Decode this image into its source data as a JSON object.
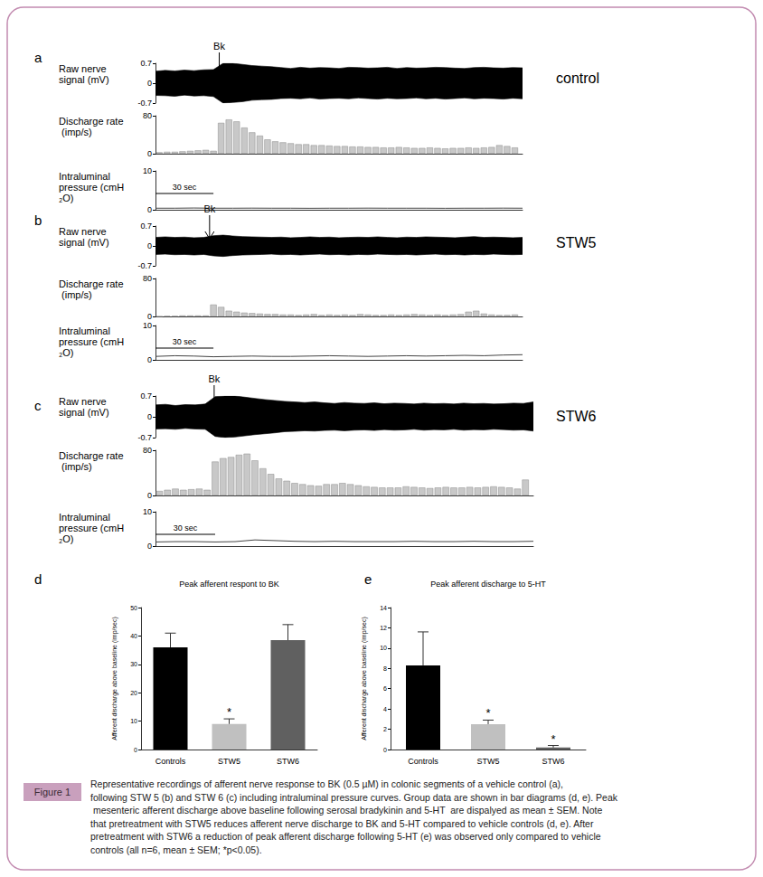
{
  "figure": {
    "label": "Figure 1",
    "caption": "Representative recordings of afferent nerve response to BK (0.5 µM) in colonic segments of a vehicle control (a), following STW 5 (b) and STW 6 (c) including intraluminal pressure curves. Group data are shown in bar diagrams (d, e). Peak mesenteric afferent discharge above baseline following serosal bradykinin and 5-HT  are dispalyed as mean ± SEM. Note that pretreatment with STW5 reduces afferent nerve discharge to BK and 5-HT compared to vehicle controls (d, e). After pretreatment with STW6 a reduction of peak afferent discharge following 5-HT (e) was observed only compared to vehicle controls (all n=6, mean ± SEM; *p<0.05)."
  },
  "chart_data": [
    {
      "panel": "a",
      "type": "recording",
      "title": "control",
      "stimulus": {
        "label": "Bk",
        "x": 33
      },
      "scale_bar": {
        "label": "30 sec",
        "value": 30
      },
      "xlim": [
        0,
        190
      ],
      "tick_labels": "y",
      "tracks": [
        {
          "type": "band",
          "ylabel": "Raw nerve signal (mV)",
          "ylim": [
            -0.7,
            0.7
          ],
          "yticks": [
            -0.7,
            0,
            0.7
          ],
          "color": "#000000",
          "x": [
            0,
            5,
            10,
            15,
            20,
            25,
            30,
            35,
            40,
            45,
            50,
            55,
            60,
            65,
            70,
            75,
            80,
            85,
            90,
            95,
            100,
            105,
            110,
            115,
            120,
            125,
            130,
            135,
            140,
            145,
            150,
            155,
            160,
            165,
            170,
            175,
            180,
            185,
            190
          ],
          "upper": [
            0.42,
            0.45,
            0.43,
            0.46,
            0.44,
            0.47,
            0.48,
            0.7,
            0.7,
            0.66,
            0.62,
            0.6,
            0.58,
            0.55,
            0.52,
            0.56,
            0.53,
            0.55,
            0.54,
            0.52,
            0.56,
            0.55,
            0.53,
            0.54,
            0.56,
            0.52,
            0.55,
            0.53,
            0.54,
            0.56,
            0.55,
            0.53,
            0.52,
            0.55,
            0.56,
            0.54,
            0.53,
            0.55,
            0.54
          ],
          "lower": [
            -0.43,
            -0.44,
            -0.46,
            -0.42,
            -0.45,
            -0.44,
            -0.47,
            -0.7,
            -0.68,
            -0.65,
            -0.6,
            -0.58,
            -0.57,
            -0.54,
            -0.53,
            -0.55,
            -0.52,
            -0.56,
            -0.54,
            -0.53,
            -0.55,
            -0.52,
            -0.54,
            -0.56,
            -0.53,
            -0.55,
            -0.54,
            -0.52,
            -0.55,
            -0.53,
            -0.56,
            -0.54,
            -0.52,
            -0.55,
            -0.53,
            -0.54,
            -0.56,
            -0.53,
            -0.55
          ]
        },
        {
          "type": "bar",
          "ylabel": "Discharge rate (imp/s)",
          "ylim": [
            0,
            80
          ],
          "yticks": [
            0,
            80
          ],
          "color": "#c8c8c8",
          "x": [
            2,
            6,
            10,
            14,
            18,
            22,
            26,
            30,
            34,
            38,
            42,
            46,
            50,
            54,
            58,
            62,
            66,
            70,
            74,
            78,
            82,
            86,
            90,
            94,
            98,
            102,
            106,
            110,
            114,
            118,
            122,
            126,
            130,
            134,
            138,
            142,
            146,
            150,
            154,
            158,
            162,
            166,
            170,
            174,
            178,
            182,
            186
          ],
          "values": [
            3,
            4,
            4,
            5,
            6,
            7,
            8,
            6,
            65,
            72,
            68,
            55,
            45,
            38,
            30,
            26,
            24,
            22,
            20,
            20,
            18,
            18,
            17,
            16,
            16,
            15,
            15,
            14,
            14,
            13,
            13,
            14,
            13,
            12,
            12,
            13,
            12,
            11,
            12,
            12,
            13,
            12,
            13,
            14,
            18,
            16,
            13
          ]
        },
        {
          "type": "line",
          "ylabel": "Intraluminal pressure (cmH₂O)",
          "ylim": [
            0,
            10
          ],
          "yticks": [
            0,
            10
          ],
          "color": "#444444",
          "x": [
            0,
            10,
            20,
            30,
            40,
            50,
            60,
            70,
            80,
            90,
            100,
            110,
            120,
            130,
            140,
            150,
            160,
            170,
            180,
            190
          ],
          "values": [
            0.4,
            0.4,
            0.45,
            0.4,
            0.4,
            0.42,
            0.4,
            0.4,
            0.38,
            0.4,
            0.4,
            0.42,
            0.4,
            0.4,
            0.4,
            0.38,
            0.4,
            0.4,
            0.42,
            0.4
          ]
        }
      ]
    },
    {
      "panel": "b",
      "type": "recording",
      "title": "STW5",
      "stimulus": {
        "label": "Bk",
        "x": 28
      },
      "scale_bar": {
        "label": "30 sec",
        "value": 30
      },
      "xlim": [
        0,
        190
      ],
      "tick_labels": "y",
      "tracks": [
        {
          "type": "band",
          "ylabel": "Raw nerve signal (mV)",
          "ylim": [
            -0.7,
            0.7
          ],
          "yticks": [
            -0.7,
            0,
            0.7
          ],
          "color": "#000000",
          "x": [
            0,
            5,
            10,
            15,
            20,
            25,
            30,
            35,
            40,
            45,
            50,
            55,
            60,
            65,
            70,
            75,
            80,
            85,
            90,
            95,
            100,
            105,
            110,
            115,
            120,
            125,
            130,
            135,
            140,
            145,
            150,
            155,
            160,
            165,
            170,
            175,
            180,
            185,
            190
          ],
          "upper": [
            0.3,
            0.32,
            0.3,
            0.31,
            0.29,
            0.3,
            0.36,
            0.38,
            0.35,
            0.33,
            0.32,
            0.31,
            0.3,
            0.31,
            0.29,
            0.3,
            0.32,
            0.3,
            0.31,
            0.29,
            0.3,
            0.31,
            0.3,
            0.32,
            0.3,
            0.29,
            0.31,
            0.3,
            0.32,
            0.31,
            0.3,
            0.29,
            0.31,
            0.33,
            0.3,
            0.31,
            0.3,
            0.29,
            0.3
          ],
          "lower": [
            -0.3,
            -0.29,
            -0.31,
            -0.3,
            -0.32,
            -0.3,
            -0.35,
            -0.37,
            -0.34,
            -0.32,
            -0.31,
            -0.3,
            -0.29,
            -0.31,
            -0.3,
            -0.32,
            -0.3,
            -0.29,
            -0.31,
            -0.3,
            -0.32,
            -0.3,
            -0.31,
            -0.29,
            -0.3,
            -0.31,
            -0.3,
            -0.32,
            -0.3,
            -0.29,
            -0.31,
            -0.3,
            -0.32,
            -0.3,
            -0.31,
            -0.29,
            -0.3,
            -0.31,
            -0.3
          ]
        },
        {
          "type": "bar",
          "ylabel": "Discharge rate (imp/s)",
          "ylim": [
            0,
            80
          ],
          "yticks": [
            0,
            80
          ],
          "color": "#c8c8c8",
          "x": [
            2,
            6,
            10,
            14,
            18,
            22,
            26,
            30,
            34,
            38,
            42,
            46,
            50,
            54,
            58,
            62,
            66,
            70,
            74,
            78,
            82,
            86,
            90,
            94,
            98,
            102,
            106,
            110,
            114,
            118,
            122,
            126,
            130,
            134,
            138,
            142,
            146,
            150,
            154,
            158,
            162,
            166,
            170,
            174,
            178,
            182,
            186
          ],
          "values": [
            0,
            1,
            1,
            2,
            2,
            2,
            2,
            25,
            20,
            12,
            10,
            8,
            7,
            6,
            5,
            5,
            4,
            4,
            3,
            4,
            5,
            3,
            4,
            3,
            4,
            3,
            5,
            4,
            3,
            3,
            4,
            3,
            4,
            5,
            4,
            3,
            4,
            3,
            4,
            5,
            10,
            12,
            6,
            4,
            3,
            3,
            4
          ]
        },
        {
          "type": "line",
          "ylabel": "Intraluminal pressure (cmH₂O)",
          "ylim": [
            0,
            10
          ],
          "yticks": [
            0,
            10
          ],
          "color": "#444444",
          "x": [
            0,
            10,
            20,
            30,
            40,
            50,
            60,
            70,
            80,
            90,
            100,
            110,
            120,
            130,
            140,
            150,
            160,
            170,
            180,
            190
          ],
          "values": [
            1.0,
            1.2,
            1.1,
            0.9,
            1.0,
            1.1,
            1.0,
            1.0,
            1.1,
            1.2,
            1.1,
            1.0,
            1.1,
            1.2,
            1.1,
            1.2,
            1.3,
            1.2,
            1.4,
            1.5
          ]
        }
      ]
    },
    {
      "panel": "c",
      "type": "recording",
      "title": "STW6",
      "stimulus": {
        "label": "Bk",
        "x": 29.5
      },
      "scale_bar": {
        "label": "30 sec",
        "value": 30
      },
      "xlim": [
        0,
        190
      ],
      "tick_labels": "y",
      "tracks": [
        {
          "type": "band",
          "ylabel": "Raw nerve signal (mV)",
          "ylim": [
            -0.7,
            0.7
          ],
          "yticks": [
            -0.7,
            0,
            0.7
          ],
          "color": "#000000",
          "x": [
            0,
            5,
            10,
            15,
            20,
            25,
            30,
            35,
            40,
            45,
            50,
            55,
            60,
            65,
            70,
            75,
            80,
            85,
            90,
            95,
            100,
            105,
            110,
            115,
            120,
            125,
            130,
            135,
            140,
            145,
            150,
            155,
            160,
            165,
            170,
            175,
            180,
            185,
            190
          ],
          "upper": [
            0.4,
            0.42,
            0.38,
            0.41,
            0.4,
            0.43,
            0.68,
            0.7,
            0.7,
            0.66,
            0.62,
            0.58,
            0.55,
            0.52,
            0.5,
            0.48,
            0.5,
            0.47,
            0.45,
            0.48,
            0.46,
            0.45,
            0.47,
            0.44,
            0.46,
            0.45,
            0.43,
            0.46,
            0.44,
            0.45,
            0.43,
            0.46,
            0.44,
            0.45,
            0.43,
            0.44,
            0.46,
            0.45,
            0.5
          ],
          "lower": [
            -0.41,
            -0.4,
            -0.42,
            -0.39,
            -0.41,
            -0.42,
            -0.66,
            -0.7,
            -0.68,
            -0.64,
            -0.6,
            -0.57,
            -0.54,
            -0.5,
            -0.49,
            -0.47,
            -0.48,
            -0.46,
            -0.45,
            -0.47,
            -0.45,
            -0.44,
            -0.46,
            -0.43,
            -0.45,
            -0.44,
            -0.42,
            -0.45,
            -0.43,
            -0.44,
            -0.42,
            -0.45,
            -0.43,
            -0.44,
            -0.42,
            -0.43,
            -0.45,
            -0.44,
            -0.48
          ]
        },
        {
          "type": "bar",
          "ylabel": "Discharge rate (imp/s)",
          "ylim": [
            0,
            80
          ],
          "yticks": [
            0,
            80
          ],
          "color": "#c8c8c8",
          "x": [
            2,
            6,
            10,
            14,
            18,
            22,
            26,
            30,
            34,
            38,
            42,
            46,
            50,
            54,
            58,
            62,
            66,
            70,
            74,
            78,
            82,
            86,
            90,
            94,
            98,
            102,
            106,
            110,
            114,
            118,
            122,
            126,
            130,
            134,
            138,
            142,
            146,
            150,
            154,
            158,
            162,
            166,
            170,
            174,
            178,
            182,
            186
          ],
          "values": [
            8,
            10,
            12,
            10,
            11,
            12,
            10,
            60,
            66,
            68,
            72,
            74,
            62,
            48,
            38,
            30,
            26,
            22,
            20,
            18,
            17,
            20,
            20,
            22,
            20,
            18,
            16,
            15,
            14,
            14,
            14,
            16,
            15,
            14,
            13,
            14,
            15,
            14,
            14,
            15,
            14,
            15,
            16,
            15,
            14,
            12,
            28
          ]
        },
        {
          "type": "line",
          "ylabel": "Intraluminal pressure (cmH₂O)",
          "ylim": [
            0,
            10
          ],
          "yticks": [
            0,
            10
          ],
          "color": "#444444",
          "x": [
            0,
            10,
            20,
            30,
            40,
            50,
            60,
            70,
            80,
            90,
            100,
            110,
            120,
            130,
            140,
            150,
            160,
            170,
            180,
            190
          ],
          "values": [
            1.2,
            1.3,
            1.3,
            1.2,
            1.3,
            1.8,
            1.6,
            1.4,
            1.3,
            1.4,
            1.3,
            1.3,
            1.3,
            1.4,
            1.3,
            1.3,
            1.4,
            1.3,
            1.3,
            1.4
          ]
        }
      ]
    },
    {
      "panel": "d",
      "type": "bar",
      "title": "Peak afferent respont to BK",
      "ylabel": "Afferent discharge above baseline (imp/sec)",
      "categories": [
        "Controls",
        "STW5",
        "STW6"
      ],
      "values": [
        36,
        9,
        38.5
      ],
      "errors": [
        5,
        1.8,
        5.5
      ],
      "significance": [
        null,
        "*",
        null
      ],
      "colors": [
        "#000000",
        "#c0c0c0",
        "#606060"
      ],
      "ylim": [
        0,
        50
      ],
      "yticks": [
        0,
        10,
        20,
        30,
        40,
        50
      ]
    },
    {
      "panel": "e",
      "type": "bar",
      "title": "Peak afferent discharge to 5-HT",
      "ylabel": "Afferent discharge above baseline (imp/sec)",
      "categories": [
        "Controls",
        "STW5",
        "STW6"
      ],
      "values": [
        8.3,
        2.5,
        0.2
      ],
      "errors": [
        3.3,
        0.4,
        0.2
      ],
      "significance": [
        null,
        "*",
        "*"
      ],
      "colors": [
        "#000000",
        "#c0c0c0",
        "#606060"
      ],
      "ylim": [
        0,
        14
      ],
      "yticks": [
        0,
        2,
        4,
        6,
        8,
        10,
        12,
        14
      ]
    }
  ]
}
